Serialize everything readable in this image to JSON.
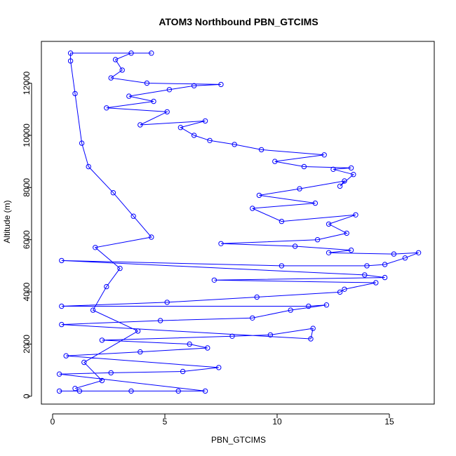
{
  "chart_data": {
    "type": "scatter",
    "title": "ATOM3 Northbound PBN_GTCIMS",
    "xlabel": "PBN_GTCIMS",
    "ylabel": "Altitude (m)",
    "xlim": [
      -0.5,
      17.0
    ],
    "ylim": [
      -300,
      13600
    ],
    "x_ticks": [
      0,
      5,
      10,
      15
    ],
    "y_ticks": [
      0,
      2000,
      4000,
      6000,
      8000,
      10000,
      12000
    ],
    "grid": false,
    "legend": "none",
    "marker": "open-circle",
    "connected_by_lines": true,
    "series": [
      {
        "color": "#0000ff",
        "points": [
          [
            0.3,
            200
          ],
          [
            1.2,
            200
          ],
          [
            3.5,
            200
          ],
          [
            5.6,
            200
          ],
          [
            6.8,
            200
          ],
          [
            0.3,
            850
          ],
          [
            2.6,
            900
          ],
          [
            5.8,
            950
          ],
          [
            7.4,
            1100
          ],
          [
            0.6,
            1550
          ],
          [
            3.9,
            1700
          ],
          [
            6.9,
            1850
          ],
          [
            6.1,
            2000
          ],
          [
            2.2,
            2150
          ],
          [
            8.0,
            2300
          ],
          [
            9.7,
            2350
          ],
          [
            11.6,
            2600
          ],
          [
            11.5,
            2200
          ],
          [
            0.4,
            2750
          ],
          [
            4.8,
            2900
          ],
          [
            8.9,
            3000
          ],
          [
            10.6,
            3300
          ],
          [
            12.2,
            3500
          ],
          [
            11.4,
            3450
          ],
          [
            0.4,
            3450
          ],
          [
            5.1,
            3600
          ],
          [
            9.1,
            3800
          ],
          [
            12.8,
            3990
          ],
          [
            13.0,
            4100
          ],
          [
            14.4,
            4350
          ],
          [
            7.2,
            4450
          ],
          [
            14.8,
            4550
          ],
          [
            13.9,
            4650
          ],
          [
            0.4,
            5200
          ],
          [
            10.2,
            5000
          ],
          [
            14.0,
            5000
          ],
          [
            14.8,
            5050
          ],
          [
            15.7,
            5300
          ],
          [
            16.3,
            5500
          ],
          [
            15.2,
            5450
          ],
          [
            12.3,
            5500
          ],
          [
            13.3,
            5600
          ],
          [
            10.8,
            5750
          ],
          [
            7.5,
            5850
          ],
          [
            11.8,
            6000
          ],
          [
            13.1,
            6250
          ],
          [
            12.3,
            6600
          ],
          [
            13.5,
            6950
          ],
          [
            10.2,
            6700
          ],
          [
            8.9,
            7200
          ],
          [
            11.7,
            7400
          ],
          [
            9.2,
            7700
          ],
          [
            11.0,
            7950
          ],
          [
            13.0,
            8250
          ],
          [
            12.8,
            8050
          ],
          [
            13.4,
            8500
          ],
          [
            12.5,
            8700
          ],
          [
            13.3,
            8750
          ],
          [
            11.2,
            8800
          ],
          [
            9.9,
            9000
          ],
          [
            12.1,
            9250
          ],
          [
            9.3,
            9450
          ],
          [
            8.1,
            9650
          ],
          [
            7.0,
            9800
          ],
          [
            6.3,
            10000
          ],
          [
            5.7,
            10300
          ],
          [
            6.8,
            10550
          ],
          [
            3.9,
            10400
          ],
          [
            5.1,
            10900
          ],
          [
            2.4,
            11050
          ],
          [
            4.5,
            11300
          ],
          [
            3.4,
            11500
          ],
          [
            5.2,
            11750
          ],
          [
            6.3,
            11900
          ],
          [
            7.5,
            11950
          ],
          [
            4.2,
            12000
          ],
          [
            2.6,
            12200
          ],
          [
            3.1,
            12500
          ],
          [
            2.8,
            12900
          ],
          [
            3.5,
            13150
          ],
          [
            4.4,
            13150
          ],
          [
            0.8,
            13150
          ],
          [
            0.8,
            12850
          ],
          [
            1.0,
            11600
          ],
          [
            1.3,
            9700
          ],
          [
            1.6,
            8800
          ],
          [
            2.7,
            7800
          ],
          [
            3.6,
            6900
          ],
          [
            4.4,
            6100
          ],
          [
            1.9,
            5700
          ],
          [
            3.0,
            4900
          ],
          [
            2.4,
            4200
          ],
          [
            1.8,
            3300
          ],
          [
            3.8,
            2500
          ],
          [
            1.4,
            1300
          ],
          [
            2.2,
            600
          ],
          [
            1.0,
            300
          ]
        ]
      }
    ]
  }
}
